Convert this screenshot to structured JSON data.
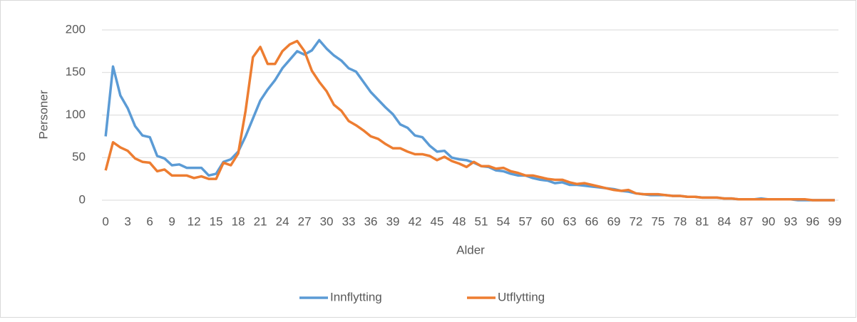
{
  "chart_data": {
    "type": "line",
    "x_label": "Alder",
    "y_label": "Personer",
    "categories": [
      "0",
      null,
      null,
      "3",
      null,
      null,
      "6",
      null,
      null,
      "9",
      null,
      null,
      "12",
      null,
      null,
      "15",
      null,
      null,
      "18",
      null,
      null,
      "21",
      null,
      null,
      "24",
      null,
      null,
      "27",
      null,
      null,
      "30",
      null,
      null,
      "33",
      null,
      null,
      "36",
      null,
      null,
      "39",
      null,
      null,
      "42",
      null,
      null,
      "45",
      null,
      null,
      "48",
      null,
      null,
      "51",
      null,
      null,
      "54",
      null,
      null,
      "57",
      null,
      null,
      "60",
      null,
      null,
      "63",
      null,
      null,
      "66",
      null,
      null,
      "69",
      null,
      null,
      "72",
      null,
      null,
      "75",
      null,
      null,
      "78",
      null,
      null,
      "81",
      null,
      null,
      "84",
      null,
      null,
      "87",
      null,
      null,
      "90",
      null,
      null,
      "93",
      null,
      null,
      "96",
      null,
      null,
      "99"
    ],
    "series": [
      {
        "name": "Innflytting",
        "color": "#5b9bd5",
        "values": [
          75,
          157,
          123,
          108,
          87,
          76,
          74,
          52,
          49,
          41,
          42,
          38,
          38,
          38,
          29,
          31,
          45,
          48,
          57,
          75,
          96,
          117,
          130,
          141,
          155,
          165,
          175,
          171,
          176,
          188,
          178,
          170,
          164,
          155,
          151,
          139,
          127,
          118,
          109,
          101,
          89,
          85,
          76,
          74,
          64,
          57,
          58,
          50,
          48,
          47,
          44,
          40,
          39,
          35,
          34,
          31,
          29,
          29,
          26,
          24,
          23,
          20,
          21,
          18,
          18,
          17,
          16,
          15,
          14,
          13,
          11,
          10,
          8,
          7,
          6,
          6,
          6,
          5,
          5,
          4,
          4,
          3,
          3,
          3,
          2,
          2,
          1,
          1,
          1,
          2,
          1,
          1,
          1,
          1,
          0,
          0,
          0,
          0,
          0,
          0
        ]
      },
      {
        "name": "Utflytting",
        "color": "#ed7d31",
        "values": [
          35,
          68,
          62,
          58,
          49,
          45,
          44,
          34,
          36,
          29,
          29,
          29,
          26,
          28,
          25,
          25,
          44,
          41,
          55,
          105,
          168,
          180,
          160,
          160,
          175,
          183,
          187,
          175,
          152,
          139,
          128,
          112,
          105,
          93,
          88,
          82,
          75,
          72,
          66,
          61,
          61,
          57,
          54,
          54,
          52,
          47,
          51,
          46,
          43,
          39,
          45,
          40,
          40,
          37,
          38,
          34,
          32,
          29,
          29,
          27,
          25,
          24,
          24,
          21,
          19,
          20,
          18,
          16,
          14,
          12,
          11,
          12,
          8,
          7,
          7,
          7,
          6,
          5,
          5,
          4,
          4,
          3,
          3,
          3,
          2,
          2,
          1,
          1,
          1,
          1,
          1,
          1,
          1,
          1,
          1,
          1,
          0,
          0,
          0,
          0
        ]
      }
    ],
    "ylim": [
      0,
      200
    ],
    "yticks": [
      0,
      50,
      100,
      150,
      200
    ],
    "grid": true,
    "legend": "bottom"
  }
}
